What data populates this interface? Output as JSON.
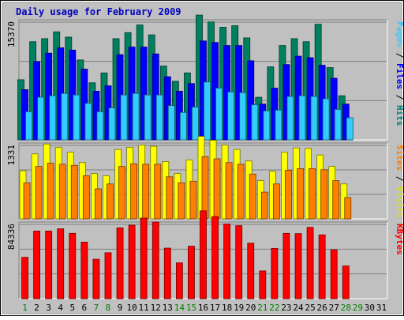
{
  "chart_data": {
    "type": "bar",
    "title": "Daily usage for February 2009",
    "days": [
      "1",
      "2",
      "3",
      "4",
      "5",
      "6",
      "7",
      "8",
      "9",
      "10",
      "11",
      "12",
      "13",
      "14",
      "15",
      "16",
      "17",
      "18",
      "19",
      "20",
      "21",
      "22",
      "23",
      "24",
      "25",
      "26",
      "27",
      "28",
      "29",
      "30",
      "31"
    ],
    "weekend_days": [
      "1",
      "7",
      "8",
      "14",
      "15",
      "21",
      "22",
      "28",
      "29"
    ],
    "panels": [
      {
        "id": "hits-panel",
        "ymax_label": "15370",
        "ymax": 15370,
        "axis_labels": [
          {
            "text": "Pages",
            "color": "#33ccff"
          },
          {
            "text": " / ",
            "color": "#000000"
          },
          {
            "text": "Files",
            "color": "#0000ff"
          },
          {
            "text": " / ",
            "color": "#000000"
          },
          {
            "text": "Hits",
            "color": "#008080"
          }
        ],
        "series": [
          {
            "name": "Hits",
            "color": "#008060",
            "values": [
              7900,
              12900,
              13300,
              14200,
              13500,
              10500,
              7500,
              8800,
              13300,
              14100,
              15100,
              13800,
              9700,
              7700,
              8800,
              16400,
              15500,
              14800,
              15000,
              13400,
              5600,
              9600,
              12400,
              13300,
              12900,
              15200,
              9500,
              5800
            ]
          },
          {
            "name": "Files",
            "color": "#0000ff",
            "values": [
              6600,
              10300,
              11400,
              12100,
              11800,
              9300,
              6400,
              7100,
              11200,
              12200,
              12200,
              11300,
              8300,
              6400,
              7400,
              13000,
              12800,
              12400,
              12400,
              10400,
              4700,
              6800,
              9900,
              11000,
              10800,
              9800,
              8100,
              4700
            ]
          },
          {
            "name": "Pages",
            "color": "#33ccff",
            "values": [
              3700,
              5600,
              5800,
              6100,
              5900,
              4800,
              3700,
              4200,
              5900,
              6100,
              5900,
              5900,
              4500,
              3600,
              4300,
              7600,
              6800,
              6300,
              6200,
              4600,
              3800,
              3900,
              5700,
              5800,
              5700,
              5400,
              4000,
              2900
            ]
          }
        ],
        "gridlines": 3
      },
      {
        "id": "visits-panel",
        "ymax_label": "1331",
        "ymax": 1331,
        "axis_labels": [
          {
            "text": "Sites",
            "color": "#ff8000"
          },
          {
            "text": " / ",
            "color": "#000000"
          },
          {
            "text": "Visits",
            "color": "#e0e000"
          }
        ],
        "series": [
          {
            "name": "Visits",
            "color": "#ffff00",
            "values": [
              880,
              1190,
              1370,
              1310,
              1220,
              1030,
              830,
              790,
              1270,
              1310,
              1350,
              1330,
              1050,
              830,
              1080,
              1510,
              1440,
              1350,
              1270,
              1060,
              700,
              870,
              1220,
              1300,
              1290,
              1170,
              960,
              640
            ]
          },
          {
            "name": "Sites",
            "color": "#ff8000",
            "values": [
              660,
              960,
              1020,
              1000,
              980,
              790,
              550,
              640,
              960,
              1010,
              1000,
              1000,
              770,
              660,
              690,
              1140,
              1100,
              1030,
              1000,
              820,
              490,
              640,
              890,
              920,
              920,
              900,
              700,
              390
            ]
          }
        ],
        "gridlines": 3
      },
      {
        "id": "kbytes-panel",
        "ymax_label": "84336",
        "ymax": 84336,
        "axis_labels": [
          {
            "text": "KBytes",
            "color": "#ff0000"
          }
        ],
        "series": [
          {
            "name": "KBytes",
            "color": "#ff0000",
            "values": [
              47500,
              77600,
              77600,
              80200,
              75000,
              64900,
              45200,
              52700,
              81300,
              84300,
              92500,
              88000,
              58000,
              41100,
              60200,
              100800,
              94300,
              85700,
              83800,
              63700,
              31800,
              57700,
              75000,
              74700,
              81900,
              73200,
              56100,
              37600
            ]
          }
        ],
        "gridlines": 3
      }
    ]
  }
}
